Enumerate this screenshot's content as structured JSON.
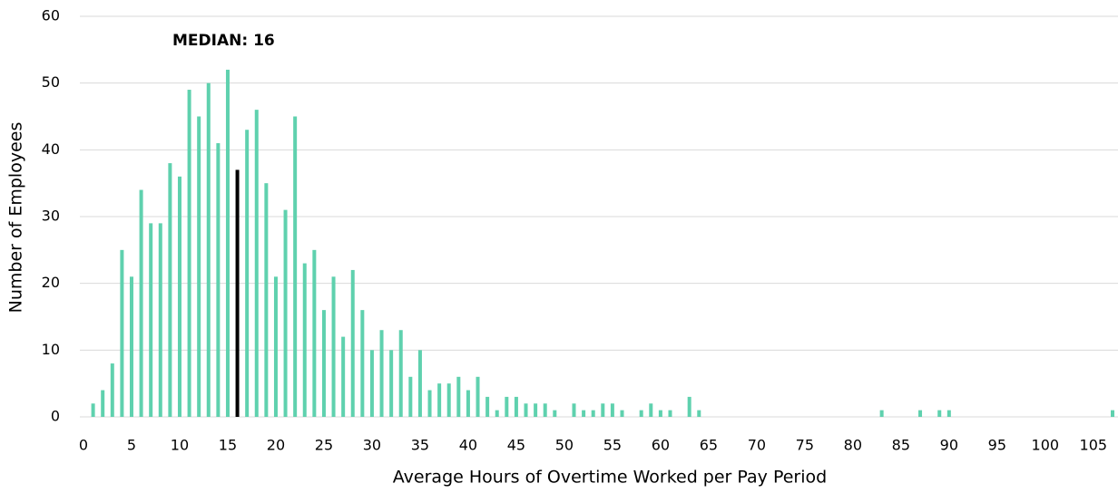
{
  "chart_data": {
    "type": "bar",
    "x_label": "Average Hours of Overtime Worked per Pay Period",
    "y_label": "Number of Employees",
    "annotations": [
      {
        "text": "MEDIAN: 16"
      }
    ],
    "highlight_x": 16,
    "highlight_color": "#000000",
    "color": "#5fd1ae",
    "x": [
      1,
      2,
      3,
      4,
      5,
      6,
      7,
      8,
      9,
      10,
      11,
      12,
      13,
      14,
      15,
      16,
      17,
      18,
      19,
      20,
      21,
      22,
      23,
      24,
      25,
      26,
      27,
      28,
      29,
      30,
      31,
      32,
      33,
      34,
      35,
      36,
      37,
      38,
      39,
      40,
      41,
      42,
      43,
      44,
      45,
      46,
      47,
      48,
      49,
      51,
      52,
      53,
      54,
      55,
      56,
      58,
      59,
      60,
      61,
      63,
      64,
      83,
      87,
      89,
      90,
      107
    ],
    "values": [
      2,
      4,
      8,
      25,
      21,
      34,
      29,
      29,
      38,
      36,
      49,
      45,
      50,
      41,
      52,
      37,
      43,
      46,
      35,
      21,
      31,
      45,
      23,
      25,
      16,
      21,
      12,
      22,
      16,
      10,
      13,
      10,
      13,
      6,
      10,
      4,
      5,
      5,
      6,
      4,
      6,
      3,
      1,
      3,
      3,
      2,
      2,
      2,
      1,
      2,
      1,
      1,
      2,
      2,
      1,
      1,
      2,
      1,
      1,
      3,
      1,
      1,
      1,
      1,
      1,
      1
    ],
    "xlim": [
      0,
      107
    ],
    "xticks": [
      0,
      5,
      10,
      15,
      20,
      25,
      30,
      35,
      40,
      45,
      50,
      55,
      60,
      65,
      70,
      75,
      80,
      85,
      90,
      95,
      100,
      105
    ],
    "ylim": [
      0,
      60
    ],
    "yticks": [
      0,
      10,
      20,
      30,
      40,
      50,
      60
    ],
    "grid": true
  }
}
